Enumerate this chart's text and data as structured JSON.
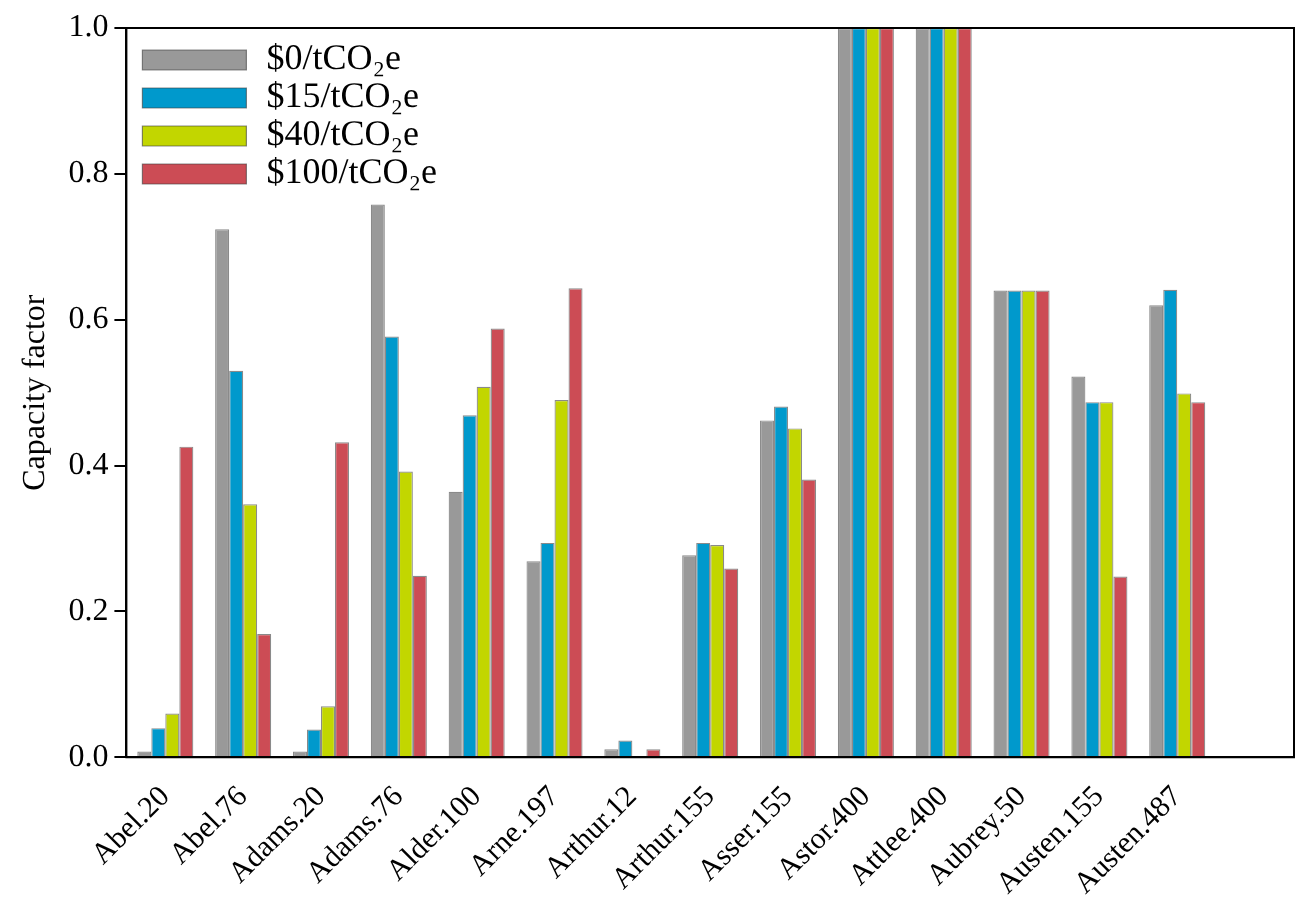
{
  "chart_data": {
    "type": "bar",
    "ylabel": "Capacity factor",
    "categories": [
      "Abel.20",
      "Abel.76",
      "Adams.20",
      "Adams.76",
      "Alder.100",
      "Arne.197",
      "Arthur.12",
      "Arthur.155",
      "Asser.155",
      "Astor.400",
      "Attlee.400",
      "Aubrey.50",
      "Austen.155",
      "Austen.487",
      null
    ],
    "series": [
      {
        "name": "$0/tCO₂e",
        "color": "#999999",
        "values": [
          0.008,
          0.724,
          0.008,
          0.758,
          0.364,
          0.269,
          0.011,
          0.277,
          0.462,
          1.0,
          1.0,
          0.64,
          0.522,
          0.62,
          null
        ]
      },
      {
        "name": "$15/tCO₂e",
        "color": "#0099cc",
        "values": [
          0.04,
          0.53,
          0.038,
          0.577,
          0.469,
          0.294,
          0.023,
          0.294,
          0.481,
          1.0,
          1.0,
          0.64,
          0.487,
          0.641,
          null
        ]
      },
      {
        "name": "$40/tCO₂e",
        "color": "#c2d600",
        "values": [
          0.06,
          0.347,
          0.07,
          0.392,
          0.508,
          0.49,
          0,
          0.291,
          0.451,
          1.0,
          1.0,
          0.64,
          0.487,
          0.499,
          null
        ]
      },
      {
        "name": "$100/tCO₂e",
        "color": "#cc4c55",
        "values": [
          0.426,
          0.169,
          0.432,
          0.249,
          0.588,
          0.643,
          0.011,
          0.259,
          0.381,
          1.0,
          1.0,
          0.64,
          0.248,
          0.487,
          null
        ]
      }
    ],
    "ylim": [
      0,
      1
    ],
    "yticks": [
      {
        "value": 0,
        "label": "0.0"
      },
      {
        "value": 0.2,
        "label": "0.2"
      },
      {
        "value": 0.4,
        "label": "0.4"
      },
      {
        "value": 0.6,
        "label": "0.6"
      },
      {
        "value": 0.8,
        "label": "0.8"
      },
      {
        "value": 1,
        "label": "1.0"
      }
    ],
    "grid": false,
    "legend": "top left"
  }
}
